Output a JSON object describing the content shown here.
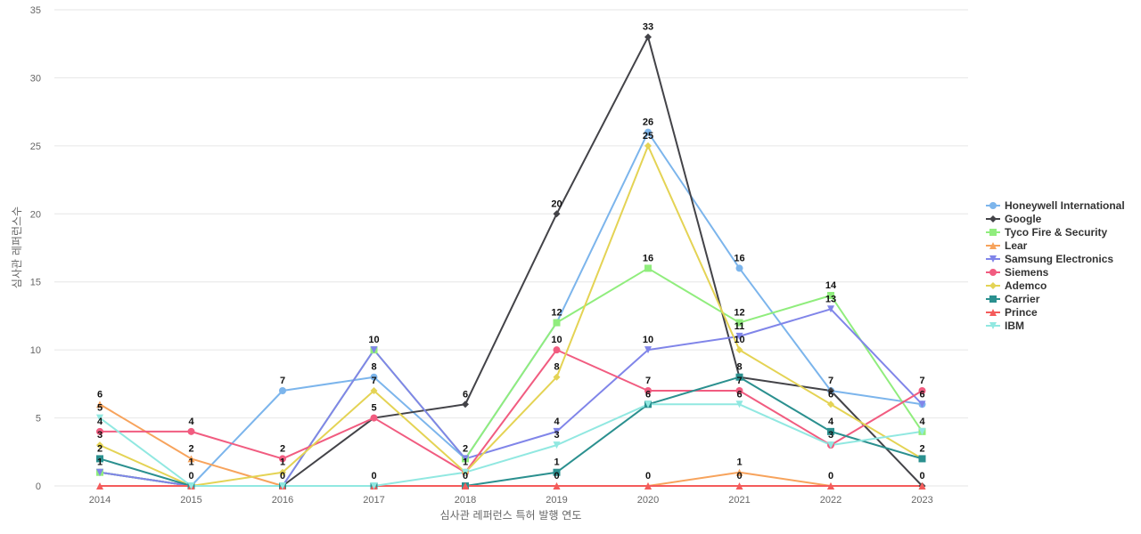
{
  "chart_data": {
    "type": "line",
    "xlabel": "심사관 레퍼런스 특허 발행 연도",
    "ylabel": "심사관 레퍼런스수",
    "ylim": [
      0,
      35
    ],
    "yticks": [
      0,
      5,
      10,
      15,
      20,
      25,
      30,
      35
    ],
    "x": [
      "2014",
      "2015",
      "2016",
      "2017",
      "2018",
      "2019",
      "2020",
      "2021",
      "2022",
      "2023"
    ],
    "legend_position": "right",
    "grid": true,
    "series": [
      {
        "name": "Honeywell International",
        "color": "#7cb5ec",
        "marker": "circle",
        "values": [
          1,
          0,
          7,
          8,
          2,
          12,
          26,
          16,
          7,
          6
        ]
      },
      {
        "name": "Google",
        "color": "#434348",
        "marker": "diamond",
        "values": [
          1,
          0,
          0,
          5,
          6,
          20,
          33,
          8,
          7,
          0
        ]
      },
      {
        "name": "Tyco Fire & Security",
        "color": "#90ed7d",
        "marker": "square",
        "values": [
          1,
          0,
          0,
          10,
          2,
          12,
          16,
          12,
          14,
          4
        ]
      },
      {
        "name": "Lear",
        "color": "#f7a35c",
        "marker": "triangle",
        "values": [
          6,
          2,
          0,
          0,
          0,
          0,
          0,
          1,
          0,
          0
        ]
      },
      {
        "name": "Samsung Electronics",
        "color": "#8085e9",
        "marker": "triangle-down",
        "values": [
          1,
          0,
          0,
          10,
          2,
          4,
          10,
          11,
          13,
          6
        ]
      },
      {
        "name": "Siemens",
        "color": "#f15c80",
        "marker": "circle",
        "values": [
          4,
          4,
          2,
          5,
          1,
          10,
          7,
          7,
          3,
          7
        ]
      },
      {
        "name": "Ademco",
        "color": "#e4d354",
        "marker": "diamond",
        "values": [
          3,
          0,
          1,
          7,
          1,
          8,
          25,
          10,
          6,
          2
        ]
      },
      {
        "name": "Carrier",
        "color": "#2b908f",
        "marker": "square",
        "values": [
          2,
          0,
          0,
          0,
          0,
          1,
          6,
          8,
          4,
          2
        ]
      },
      {
        "name": "Prince",
        "color": "#f45b5b",
        "marker": "triangle",
        "values": [
          0,
          0,
          0,
          0,
          0,
          0,
          0,
          0,
          0,
          0
        ]
      },
      {
        "name": "IBM",
        "color": "#91e8e1",
        "marker": "triangle-down",
        "values": [
          5,
          0,
          0,
          0,
          1,
          3,
          6,
          6,
          3,
          4
        ]
      }
    ],
    "data_labels": [
      {
        "x": "2014",
        "texts": [
          "6",
          "5",
          "4",
          "3",
          "2",
          "1"
        ]
      },
      {
        "x": "2015",
        "texts": [
          "4",
          "2",
          "1",
          "0"
        ]
      },
      {
        "x": "2016",
        "texts": [
          "7",
          "2",
          "1",
          "0"
        ]
      },
      {
        "x": "2017",
        "texts": [
          "10",
          "8",
          "7",
          "5",
          "0"
        ]
      },
      {
        "x": "2018",
        "texts": [
          "6",
          "2",
          "1",
          "0"
        ]
      },
      {
        "x": "2019",
        "texts": [
          "20",
          "12",
          "10",
          "8",
          "4",
          "3",
          "1",
          "0"
        ]
      },
      {
        "x": "2020",
        "texts": [
          "33",
          "26",
          "25",
          "16",
          "10",
          "7",
          "6",
          "0"
        ]
      },
      {
        "x": "2021",
        "texts": [
          "16",
          "12",
          "11",
          "10",
          "8",
          "7",
          "6",
          "1",
          "0"
        ]
      },
      {
        "x": "2022",
        "texts": [
          "14",
          "13",
          "7",
          "6",
          "4",
          "3",
          "0"
        ]
      },
      {
        "x": "2023",
        "texts": [
          "7",
          "6",
          "4",
          "2",
          "0"
        ]
      }
    ]
  }
}
